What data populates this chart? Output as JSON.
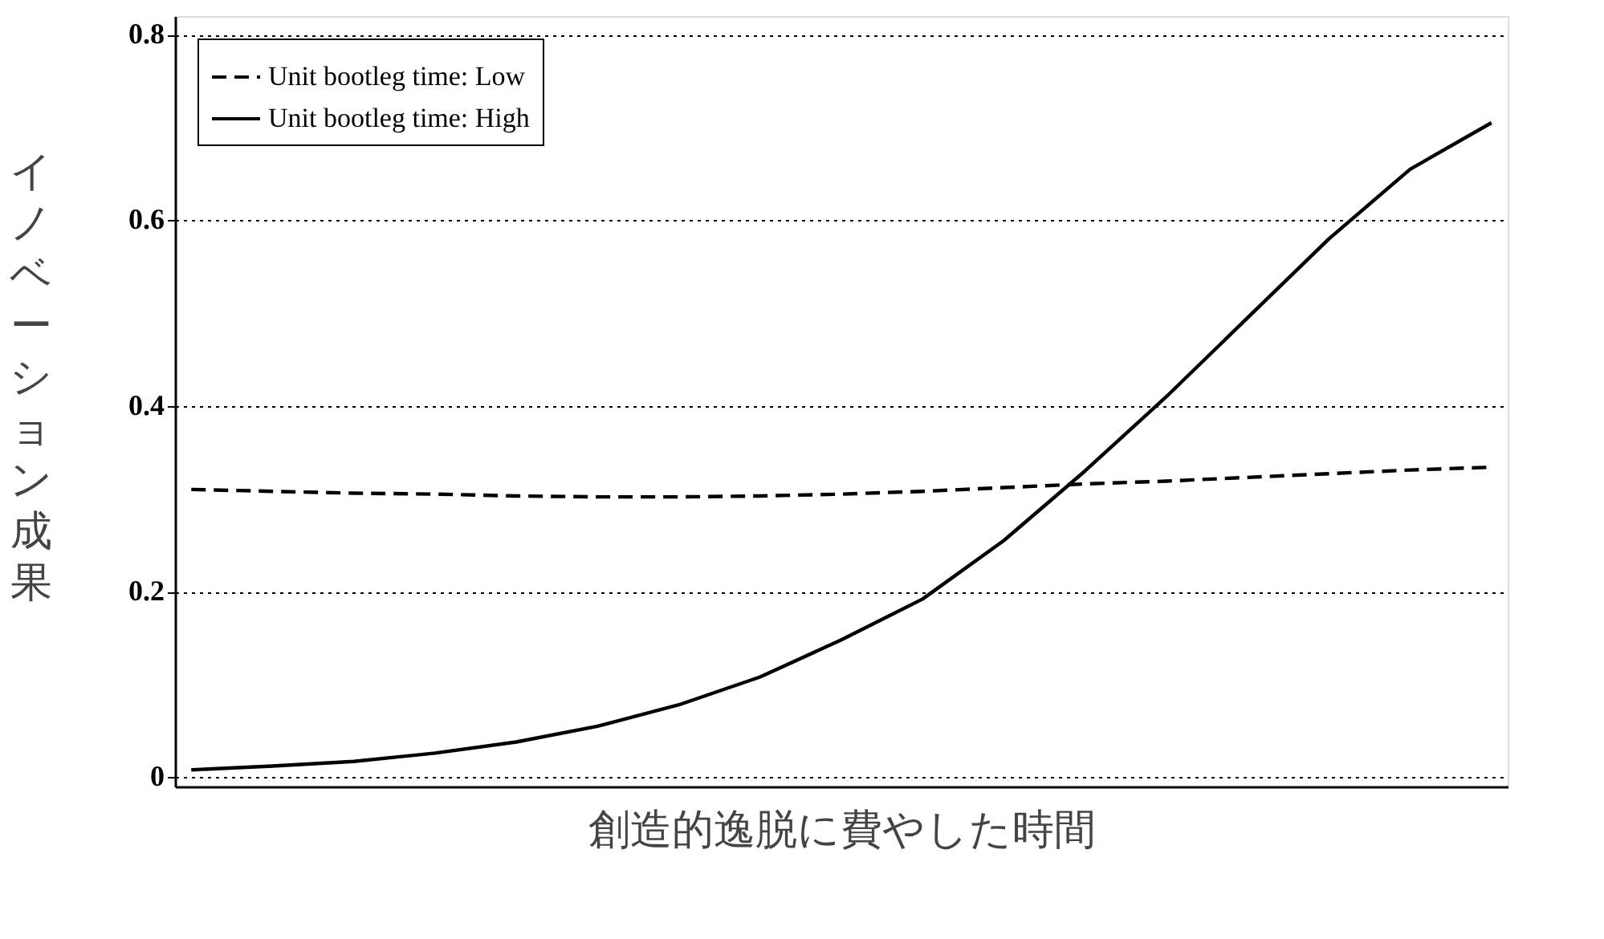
{
  "chart_data": {
    "type": "line",
    "xlabel": "創造的逸脱に費やした時間",
    "ylabel": "イノベーション成果",
    "categories": [
      null,
      null,
      null,
      null,
      null,
      null,
      null,
      null,
      null,
      null,
      null,
      null,
      null,
      null,
      null,
      null,
      null
    ],
    "series": [
      {
        "name": "Unit bootleg time: Low",
        "color": "#000000",
        "line_style": "dashed",
        "values": [
          0.31,
          0.308,
          0.306,
          0.305,
          0.303,
          0.302,
          0.302,
          0.303,
          0.305,
          0.308,
          0.312,
          0.316,
          0.319,
          0.323,
          0.327,
          0.331,
          0.334
        ]
      },
      {
        "name": "Unit bootleg time: High",
        "color": "#000000",
        "line_style": "solid",
        "values": [
          0.008,
          0.012,
          0.017,
          0.026,
          0.038,
          0.055,
          0.078,
          0.108,
          0.148,
          0.192,
          0.255,
          0.33,
          0.41,
          0.495,
          0.58,
          0.655,
          0.705
        ]
      }
    ],
    "ylim": [
      -0.01,
      0.82
    ],
    "yticks": [
      0,
      0.2,
      0.4,
      0.6,
      0.8
    ],
    "grid": "y",
    "legend": "top left",
    "marker": "none",
    "tick_labels": "y"
  }
}
